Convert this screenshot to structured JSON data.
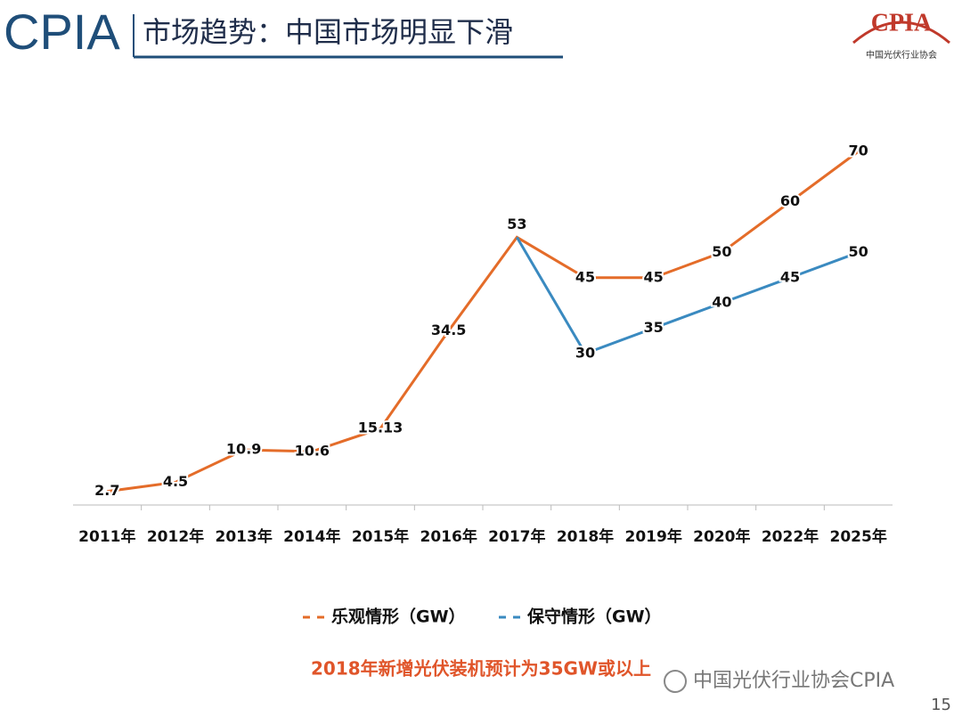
{
  "header": {
    "logo_text": "CPIA",
    "title": "市场趋势：中国市场明显下滑"
  },
  "logo": {
    "text": "CPIA",
    "subtitle": "中国光伏行业协会"
  },
  "chart_data": {
    "type": "line",
    "categories": [
      "2011年",
      "2012年",
      "2013年",
      "2014年",
      "2015年",
      "2016年",
      "2017年",
      "2018年",
      "2019年",
      "2020年",
      "2022年",
      "2025年"
    ],
    "series": [
      {
        "name": "乐观情形（GW）",
        "color": "#e46c29",
        "values": [
          2.7,
          4.5,
          10.9,
          10.6,
          15.13,
          34.5,
          53,
          45,
          45,
          50,
          60,
          70
        ]
      },
      {
        "name": "保守情形（GW）",
        "color": "#3a8ac0",
        "values": [
          null,
          null,
          null,
          null,
          null,
          null,
          53,
          30,
          35,
          40,
          45,
          50
        ]
      }
    ]
  },
  "footer_note": "2018年新增光伏装机预计为35GW或以上",
  "watermark": "中国光伏行业协会CPIA",
  "page_number": 15
}
